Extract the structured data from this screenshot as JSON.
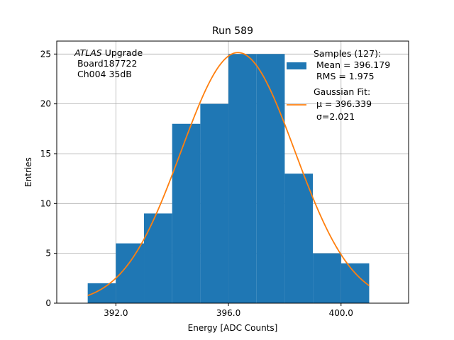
{
  "chart_data": {
    "type": "bar",
    "title": "Run 589",
    "xlabel": "Energy [ADC Counts]",
    "ylabel": "Entries",
    "xlim": [
      389.9,
      402.4
    ],
    "ylim": [
      0,
      26.3
    ],
    "xticks": [
      392.0,
      396.0,
      400.0
    ],
    "xtick_labels": [
      "392.0",
      "396.0",
      "400.0"
    ],
    "yticks": [
      0,
      5,
      10,
      15,
      20,
      25
    ],
    "ytick_labels": [
      "0",
      "5",
      "10",
      "15",
      "20",
      "25"
    ],
    "grid": true,
    "legend_position": "top-right",
    "bins": [
      {
        "x0": 391,
        "x1": 392,
        "count": 2
      },
      {
        "x0": 392,
        "x1": 393,
        "count": 6
      },
      {
        "x0": 393,
        "x1": 394,
        "count": 9
      },
      {
        "x0": 394,
        "x1": 395,
        "count": 18
      },
      {
        "x0": 395,
        "x1": 396,
        "count": 20
      },
      {
        "x0": 396,
        "x1": 397,
        "count": 25
      },
      {
        "x0": 397,
        "x1": 398,
        "count": 25
      },
      {
        "x0": 398,
        "x1": 399,
        "count": 13
      },
      {
        "x0": 399,
        "x1": 400,
        "count": 5
      },
      {
        "x0": 400,
        "x1": 401,
        "count": 4
      }
    ],
    "gaussian_fit": {
      "amplitude": 25.15,
      "mu": 396.339,
      "sigma": 2.021,
      "x_range": [
        391.0,
        401.0
      ]
    },
    "series": [
      {
        "name": "Samples (127):",
        "lines": [
          "Samples (127):",
          " Mean = 396.179",
          " RMS = 1.975"
        ],
        "color": "#1f77b4"
      },
      {
        "name": "Gaussian Fit:",
        "lines": [
          "Gaussian Fit:",
          " μ = 396.339",
          " σ=2.021"
        ],
        "color": "#ff7f0e"
      }
    ],
    "annotation": {
      "italic": "ATLAS",
      "rest": " Upgrade",
      "lines": [
        " Board187722",
        " Ch004 35dB"
      ]
    }
  }
}
